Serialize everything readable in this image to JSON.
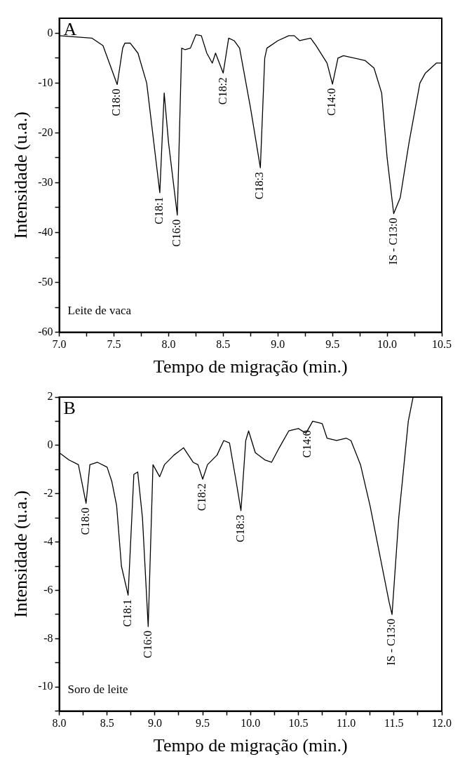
{
  "chart_data": [
    {
      "type": "line",
      "xlabel": "Tempo de migração (min.)",
      "ylabel": "Intensidade (u.a.)",
      "x": [
        7.0,
        7.3,
        7.4,
        7.53,
        7.58,
        7.6,
        7.65,
        7.72,
        7.8,
        7.92,
        7.96,
        8.0,
        8.08,
        8.12,
        8.15,
        8.2,
        8.25,
        8.3,
        8.35,
        8.4,
        8.43,
        8.5,
        8.55,
        8.6,
        8.65,
        8.75,
        8.84,
        8.88,
        8.9,
        9.0,
        9.1,
        9.15,
        9.2,
        9.3,
        9.35,
        9.45,
        9.5,
        9.55,
        9.6,
        9.8,
        9.88,
        9.95,
        10.0,
        10.06,
        10.12,
        10.2,
        10.3,
        10.35,
        10.45,
        10.5
      ],
      "series": [
        {
          "color": "#000000",
          "values": [
            -0.5,
            -1,
            -2.5,
            -10.3,
            -3,
            -2,
            -2,
            -4,
            -10,
            -32,
            -12,
            -22,
            -36.5,
            -3,
            -3.3,
            -3,
            -0.3,
            -0.5,
            -4,
            -6,
            -4,
            -8,
            -1,
            -1.5,
            -3,
            -15,
            -27,
            -5,
            -3,
            -1.5,
            -0.5,
            -0.5,
            -1.5,
            -1,
            -2.5,
            -6,
            -10.2,
            -5,
            -4.5,
            -5.5,
            -7,
            -12,
            -25,
            -36.2,
            -33,
            -22,
            -10,
            -8,
            -6,
            -6
          ]
        }
      ],
      "xlim": [
        7.0,
        10.5
      ],
      "ylim": [
        -60,
        3
      ],
      "xticks": [
        {
          "value": 7,
          "label": "7.0"
        },
        {
          "value": 7.25,
          "label": null
        },
        {
          "value": 7.5,
          "label": "7.5"
        },
        {
          "value": 7.75,
          "label": null
        },
        {
          "value": 8,
          "label": "8.0"
        },
        {
          "value": 8.25,
          "label": null
        },
        {
          "value": 8.5,
          "label": "8.5"
        },
        {
          "value": 8.75,
          "label": null
        },
        {
          "value": 9,
          "label": "9.0"
        },
        {
          "value": 9.25,
          "label": null
        },
        {
          "value": 9.5,
          "label": "9.5"
        },
        {
          "value": 9.75,
          "label": null
        },
        {
          "value": 10,
          "label": "10.0"
        },
        {
          "value": 10.25,
          "label": null
        },
        {
          "value": 10.5,
          "label": "10.5"
        }
      ],
      "yticks": [
        -60,
        {
          "value": -55,
          "label": null
        },
        -50,
        {
          "value": -45,
          "label": null
        },
        -40,
        {
          "value": -35,
          "label": null
        },
        -30,
        {
          "value": -25,
          "label": null
        },
        -20,
        {
          "value": -15,
          "label": null
        },
        -10,
        {
          "value": -5,
          "label": null
        },
        0
      ],
      "marker": "none",
      "legend": false,
      "grid": false,
      "annotations": [
        "A",
        "Leite de vaca",
        {
          "text": "C18:0",
          "x": 7.53,
          "y": -10.3
        },
        {
          "text": "C18:1",
          "x": 7.92,
          "y": -32
        },
        {
          "text": "C16:0",
          "x": 8.08,
          "y": -36.5
        },
        {
          "text": "C18:2",
          "x": 8.5,
          "y": -8
        },
        {
          "text": "C18:3",
          "x": 8.84,
          "y": -27
        },
        {
          "text": "C14:0",
          "x": 9.5,
          "y": -10.2
        },
        {
          "text": "IS - C13:0",
          "x": 10.06,
          "y": -36.2
        }
      ]
    },
    {
      "type": "line",
      "xlabel": "Tempo de migração (min.)",
      "ylabel": "Intensidade (u.a.)",
      "x": [
        8.0,
        8.1,
        8.2,
        8.28,
        8.32,
        8.4,
        8.5,
        8.55,
        8.6,
        8.65,
        8.72,
        8.78,
        8.82,
        8.87,
        8.93,
        8.98,
        9.05,
        9.1,
        9.2,
        9.3,
        9.4,
        9.45,
        9.5,
        9.55,
        9.65,
        9.72,
        9.78,
        9.85,
        9.9,
        9.95,
        9.98,
        10.05,
        10.15,
        10.22,
        10.3,
        10.4,
        10.5,
        10.58,
        10.65,
        10.75,
        10.8,
        10.9,
        11.0,
        11.05,
        11.15,
        11.25,
        11.35,
        11.45,
        11.48,
        11.55,
        11.65,
        11.7
      ],
      "series": [
        {
          "color": "#000000",
          "values": [
            -0.3,
            -0.6,
            -0.8,
            -2.4,
            -0.8,
            -0.7,
            -0.9,
            -1.5,
            -2.5,
            -5,
            -6.2,
            -1.2,
            -1.1,
            -3,
            -7.5,
            -0.8,
            -1.3,
            -0.8,
            -0.4,
            -0.1,
            -0.7,
            -0.8,
            -1.4,
            -0.8,
            -0.4,
            0.2,
            0.1,
            -1.5,
            -2.7,
            0.2,
            0.6,
            -0.3,
            -0.6,
            -0.7,
            -0.1,
            0.6,
            0.7,
            0.5,
            1.0,
            0.9,
            0.3,
            0.2,
            0.3,
            0.2,
            -0.8,
            -2.5,
            -4.5,
            -6.5,
            -7.0,
            -3,
            1,
            2
          ]
        }
      ],
      "xlim": [
        8.0,
        12.0
      ],
      "ylim": [
        -11,
        2
      ],
      "xticks": [
        {
          "value": 8,
          "label": "8.0"
        },
        {
          "value": 8.25,
          "label": null
        },
        {
          "value": 8.5,
          "label": "8.5"
        },
        {
          "value": 8.75,
          "label": null
        },
        {
          "value": 9,
          "label": "9.0"
        },
        {
          "value": 9.25,
          "label": null
        },
        {
          "value": 9.5,
          "label": "9.5"
        },
        {
          "value": 9.75,
          "label": null
        },
        {
          "value": 10,
          "label": "10.0"
        },
        {
          "value": 10.25,
          "label": null
        },
        {
          "value": 10.5,
          "label": "10.5"
        },
        {
          "value": 10.75,
          "label": null
        },
        {
          "value": 11,
          "label": "11.0"
        },
        {
          "value": 11.25,
          "label": null
        },
        {
          "value": 11.5,
          "label": "11.5"
        },
        {
          "value": 11.75,
          "label": null
        },
        {
          "value": 12,
          "label": "12.0"
        }
      ],
      "yticks": [
        {
          "value": -11,
          "label": null
        },
        -10,
        {
          "value": -9,
          "label": null
        },
        -8,
        {
          "value": -7,
          "label": null
        },
        -6,
        {
          "value": -5,
          "label": null
        },
        -4,
        {
          "value": -3,
          "label": null
        },
        -2,
        {
          "value": -1,
          "label": null
        },
        0,
        {
          "value": 1,
          "label": null
        },
        2
      ],
      "marker": "none",
      "legend": false,
      "grid": false,
      "annotations": [
        "B",
        "Soro de leite",
        {
          "text": "C18:0",
          "x": 8.28,
          "y": -2.4
        },
        {
          "text": "C18:1",
          "x": 8.72,
          "y": -6.2
        },
        {
          "text": "C16:0",
          "x": 8.93,
          "y": -7.5
        },
        {
          "text": "C18:2",
          "x": 9.5,
          "y": -1.4
        },
        {
          "text": "C18:3",
          "x": 9.9,
          "y": -2.7
        },
        {
          "text": "C14:0",
          "x": 10.6,
          "y": 0.8
        },
        {
          "text": "IS - C13:0",
          "x": 11.48,
          "y": -7.0
        }
      ]
    }
  ]
}
